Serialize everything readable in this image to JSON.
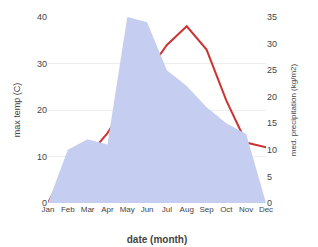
{
  "chart_data": {
    "type": "line",
    "categories": [
      "Jan",
      "Feb",
      "Mar",
      "Apr",
      "May",
      "Jun",
      "Jul",
      "Aug",
      "Sep",
      "Oct",
      "Nov",
      "Dec"
    ],
    "xlabel": "date (month)",
    "ylabel": "max temp (C)",
    "y2label": "med. precipitation (kg/m2)",
    "series": [
      {
        "type": "area",
        "axis": "y2",
        "color": "#c5cef0",
        "values": [
          0,
          10,
          12,
          11,
          35,
          34,
          25,
          22,
          18,
          15,
          13,
          0
        ]
      },
      {
        "type": "line",
        "color": "#cc3333",
        "values": [
          0,
          8,
          10,
          15,
          22,
          28,
          34,
          38,
          33,
          22,
          13,
          12
        ]
      }
    ],
    "ylim": [
      0,
      40
    ],
    "yticks": [
      0,
      10,
      20,
      30,
      40
    ],
    "y2lim": [
      0,
      35
    ],
    "y2ticks": [
      0,
      5,
      10,
      15,
      20,
      25,
      30,
      35
    ],
    "grid": true
  }
}
